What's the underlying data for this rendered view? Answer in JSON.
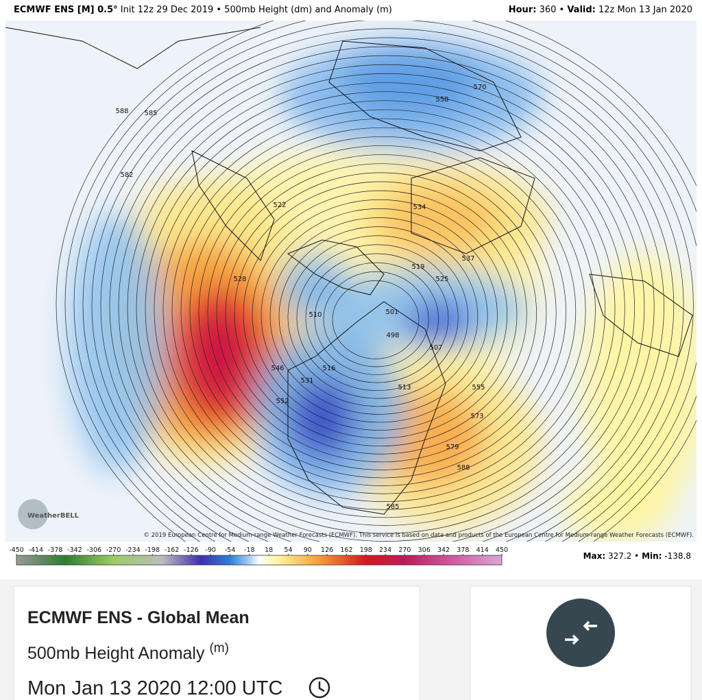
{
  "header": {
    "model": "ECMWF ENS [M] 0.5°",
    "init": "Init 12z 29 Dec 2019 • 500mb Height (dm) and Anomaly (m)",
    "hour_label": "Hour:",
    "hour": "360 •",
    "valid_label": "Valid:",
    "valid": "12z Mon 13 Jan 2020"
  },
  "map": {
    "contour_labels": [
      "588",
      "585",
      "582",
      "570",
      "558",
      "522",
      "534",
      "528",
      "519",
      "525",
      "510",
      "501",
      "498",
      "507",
      "516",
      "531",
      "546",
      "552",
      "537",
      "513",
      "555",
      "573",
      "579",
      "588",
      "585"
    ],
    "copyright": "© 2019 European Centre for Medium-range Weather Forecasts (ECMWF). This service is based on data and products of the European Centre for Medium-range Weather Forecasts (ECMWF).",
    "logo": "WeatherBELL"
  },
  "colorbar": {
    "ticks": [
      -450,
      -414,
      -378,
      -342,
      -306,
      -270,
      -234,
      -198,
      -162,
      -126,
      -90,
      -54,
      -18,
      18,
      54,
      90,
      126,
      162,
      198,
      234,
      270,
      306,
      342,
      378,
      414,
      450
    ]
  },
  "stats": {
    "max_label": "Max:",
    "max": "327.2 •",
    "min_label": "Min:",
    "min": "-138.8"
  },
  "card": {
    "title": "ECMWF ENS - Global Mean",
    "subtitle": "500mb Height Anomaly",
    "unit": "(m)",
    "datetime": "Mon Jan 13 2020 12:00 UTC"
  }
}
